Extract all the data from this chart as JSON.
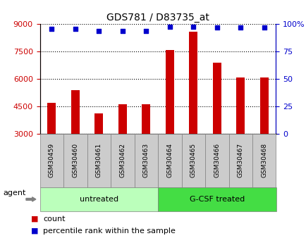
{
  "title": "GDS781 / D83735_at",
  "samples": [
    "GSM30459",
    "GSM30460",
    "GSM30461",
    "GSM30462",
    "GSM30463",
    "GSM30464",
    "GSM30465",
    "GSM30466",
    "GSM30467",
    "GSM30468"
  ],
  "counts": [
    4700,
    5400,
    4100,
    4600,
    4600,
    7600,
    8600,
    6900,
    6100,
    6100
  ],
  "percentile_ranks": [
    96,
    96,
    94,
    94,
    94,
    98,
    98,
    97,
    97,
    97
  ],
  "ylim_left": [
    3000,
    9000
  ],
  "ylim_right": [
    0,
    100
  ],
  "yticks_left": [
    3000,
    4500,
    6000,
    7500,
    9000
  ],
  "yticks_right": [
    0,
    25,
    50,
    75,
    100
  ],
  "ytick_labels_right": [
    "0",
    "25",
    "50",
    "75",
    "100%"
  ],
  "bar_color": "#cc0000",
  "dot_color": "#0000cc",
  "groups": [
    {
      "label": "untreated",
      "start": 0,
      "end": 5,
      "color": "#bbffbb"
    },
    {
      "label": "G-CSF treated",
      "start": 5,
      "end": 10,
      "color": "#44dd44"
    }
  ],
  "agent_label": "agent",
  "legend_count_label": "count",
  "legend_pct_label": "percentile rank within the sample",
  "bar_bottom": 3000,
  "left_tick_color": "#cc0000",
  "right_tick_color": "#0000cc",
  "tick_box_color": "#cccccc",
  "bar_width": 0.35
}
